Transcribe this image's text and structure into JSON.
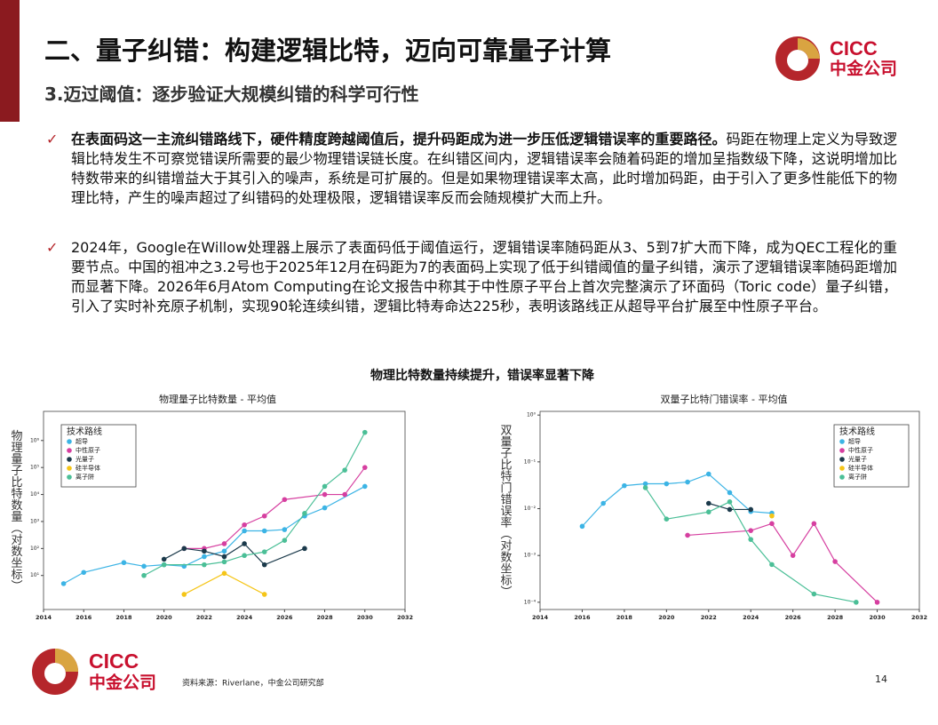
{
  "header": {
    "title": "二、量子纠错：构建逻辑比特，迈向可靠量子计算",
    "subtitle": "3.迈过阈值：逐步验证大规模纠错的科学可行性",
    "logo_en": "CICC",
    "logo_cn": "中金公司"
  },
  "bullets": [
    {
      "lead": "在表面码这一主流纠错路线下，硬件精度跨越阈值后，提升码距成为进一步压低逻辑错误率的重要路径。",
      "text": "码距在物理上定义为导致逻辑比特发生不可察觉错误所需要的最少物理错误链长度。在纠错区间内，逻辑错误率会随着码距的增加呈指数级下降，这说明增加比特数带来的纠错增益大于其引入的噪声，系统是可扩展的。但是如果物理错误率太高，此时增加码距，由于引入了更多性能低下的物理比特，产生的噪声超过了纠错码的处理极限，逻辑错误率反而会随规模扩大而上升。"
    },
    {
      "text": "2024年，Google在Willow处理器上展示了表面码低于阈值运行，逻辑错误率随码距从3、5到7扩大而下降，成为QEC工程化的重要节点。中国的祖冲之3.2号也于2025年12月在码距为7的表面码上实现了低于纠错阈值的量子纠错，演示了逻辑错误率随码距增加而显著下降。2026年6月Atom Computing在论文报告中称其于中性原子平台上首次完整演示了环面码（Toric code）量子纠错，引入了实时补充原子机制，实现90轮连续纠错，逻辑比特寿命达225秒，表明该路线正从超导平台扩展至中性原子平台。"
    }
  ],
  "figure_title": "物理比特数量持续提升，错误率显著下降",
  "chart_data": [
    {
      "type": "line",
      "title": "物理量子比特数量 - 平均值",
      "y_label": "物理量子比特数量（对数坐标）",
      "log_y": true,
      "legend_title": "技术路线",
      "legend": "upper left",
      "xlim": [
        2014,
        2032
      ],
      "xticks": [
        2014,
        2016,
        2018,
        2020,
        2022,
        2024,
        2026,
        2028,
        2030,
        2032
      ],
      "ylim": [
        0.55,
        12000000
      ],
      "yticks": [
        {
          "value": 10,
          "label": "10¹"
        },
        {
          "value": 100,
          "label": "10²"
        },
        {
          "value": 1000,
          "label": "10³"
        },
        {
          "value": 10000,
          "label": "10⁴"
        },
        {
          "value": 100000,
          "label": "10⁵"
        },
        {
          "value": 1000000,
          "label": "10⁶"
        }
      ],
      "series": [
        {
          "name": "超导",
          "color": "#3cb4e5",
          "x": [
            2015,
            2016,
            2018,
            2019,
            2020,
            2021,
            2022,
            2023,
            2024,
            2025,
            2026,
            2027,
            2028,
            2030
          ],
          "values": [
            5,
            13,
            30,
            22,
            25,
            22,
            50,
            80,
            450,
            450,
            500,
            1600,
            3200,
            20000
          ]
        },
        {
          "name": "中性原子",
          "color": "#d63fa0",
          "x": [
            2021,
            2022,
            2023,
            2024,
            2025,
            2026,
            2028,
            2029,
            2030
          ],
          "values": [
            100,
            100,
            150,
            750,
            1600,
            6500,
            10000,
            10000,
            100000
          ]
        },
        {
          "name": "光量子",
          "color": "#1b3a4b",
          "x": [
            2020,
            2021,
            2022,
            2023,
            2024,
            2025,
            2027
          ],
          "values": [
            40,
            100,
            80,
            50,
            150,
            25,
            100
          ]
        },
        {
          "name": "硅半导体",
          "color": "#f5c518",
          "x": [
            2021,
            2023,
            2025
          ],
          "values": [
            2,
            12,
            2
          ]
        },
        {
          "name": "离子阱",
          "color": "#4bbf97",
          "x": [
            2019,
            2020,
            2022,
            2023,
            2024,
            2025,
            2026,
            2027,
            2028,
            2029,
            2030
          ],
          "values": [
            10,
            25,
            25,
            32,
            55,
            75,
            200,
            2000,
            20000,
            80000,
            2000000
          ]
        }
      ]
    },
    {
      "type": "line",
      "title": "双量子比特门错误率 - 平均值",
      "y_label": "双量子比特门错误率（对数坐标）",
      "log_y": true,
      "legend_title": "技术路线",
      "legend": "upper right",
      "xlim": [
        2014,
        2032
      ],
      "xticks": [
        2014,
        2016,
        2018,
        2020,
        2022,
        2024,
        2026,
        2028,
        2030,
        2032
      ],
      "ylim": [
        7e-05,
        1.2
      ],
      "yticks": [
        {
          "value": 1,
          "label": "10⁰"
        },
        {
          "value": 0.1,
          "label": "10⁻¹"
        },
        {
          "value": 0.01,
          "label": "10⁻²"
        },
        {
          "value": 0.001,
          "label": "10⁻³"
        },
        {
          "value": 0.0001,
          "label": "10⁻⁴"
        }
      ],
      "series": [
        {
          "name": "超导",
          "color": "#3cb4e5",
          "x": [
            2016,
            2017,
            2018,
            2019,
            2020,
            2021,
            2022,
            2023,
            2024,
            2025
          ],
          "values": [
            0.0042,
            0.013,
            0.031,
            0.034,
            0.034,
            0.037,
            0.055,
            0.022,
            0.0087,
            0.008
          ]
        },
        {
          "name": "中性原子",
          "color": "#d63fa0",
          "x": [
            2021,
            2024,
            2025,
            2026,
            2027,
            2028,
            2030
          ],
          "values": [
            0.0027,
            0.0034,
            0.0048,
            0.001,
            0.0048,
            0.00074,
            0.0001
          ]
        },
        {
          "name": "光量子",
          "color": "#1b3a4b",
          "x": [
            2022,
            2023,
            2024
          ],
          "values": [
            0.013,
            0.0096,
            0.0096
          ]
        },
        {
          "name": "硅半导体",
          "color": "#f5c518",
          "x": [
            2025
          ],
          "values": [
            0.007
          ]
        },
        {
          "name": "离子阱",
          "color": "#4bbf97",
          "x": [
            2019,
            2020,
            2022,
            2023,
            2024,
            2025,
            2027,
            2029
          ],
          "values": [
            0.028,
            0.006,
            0.0085,
            0.014,
            0.0022,
            0.00064,
            0.00015,
            0.0001
          ]
        }
      ]
    }
  ],
  "footer": {
    "logo_en": "CICC",
    "logo_cn": "中金公司",
    "source": "资料来源：Riverlane，中金公司研究部",
    "page": "14"
  }
}
